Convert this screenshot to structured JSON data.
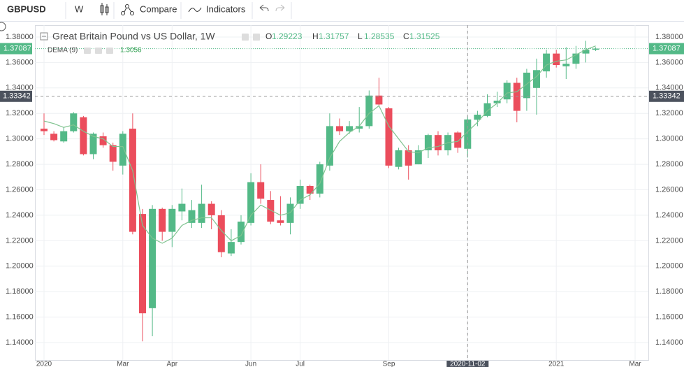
{
  "toolbar": {
    "symbol": "GBPUSD",
    "interval": "W",
    "compare": "Compare",
    "indicators": "Indicators"
  },
  "chart_data": {
    "type": "candlestick",
    "title": "Great Britain Pound vs US Dollar, 1W",
    "ohlc_labels": [
      "O",
      "H",
      "L",
      "C"
    ],
    "indicator": "DEMA (9)",
    "categories": [
      "2020",
      null,
      null,
      null,
      null,
      null,
      null,
      null,
      "Mar",
      null,
      null,
      null,
      null,
      "Apr",
      null,
      null,
      null,
      null,
      null,
      null,
      null,
      "Jun",
      null,
      null,
      null,
      null,
      "Jul",
      null,
      null,
      null,
      null,
      null,
      null,
      null,
      null,
      "Sep",
      null,
      null,
      null,
      null,
      null,
      null,
      null,
      "2020-11-02",
      null,
      null,
      null,
      null,
      null,
      null,
      null,
      null,
      "2021",
      null,
      null,
      null,
      null,
      null,
      null,
      null,
      "Mar"
    ],
    "open": [
      1.308,
      1.304,
      1.298,
      1.306,
      1.317,
      1.288,
      1.302,
      1.295,
      1.279,
      1.308,
      1.241,
      1.167,
      1.245,
      1.227,
      1.243,
      1.234,
      1.234,
      1.249,
      1.24,
      1.21,
      1.219,
      1.234,
      1.266,
      1.252,
      1.236,
      1.234,
      1.249,
      1.263,
      1.257,
      1.279,
      1.31,
      1.306,
      1.308,
      1.31,
      1.334,
      1.324,
      1.278,
      1.291,
      1.28,
      1.291,
      1.303,
      1.291,
      1.305,
      1.29223,
      1.315,
      1.318,
      1.328,
      1.331,
      1.344,
      1.332,
      1.34,
      1.353,
      1.367,
      1.357,
      1.359,
      1.367,
      1.37,
      null,
      null,
      null,
      null
    ],
    "high": [
      1.32,
      1.306,
      1.309,
      1.321,
      1.318,
      1.305,
      1.305,
      1.297,
      1.306,
      1.32,
      1.245,
      1.248,
      1.246,
      1.248,
      1.261,
      1.252,
      1.264,
      1.251,
      1.244,
      1.229,
      1.24,
      1.273,
      1.28,
      1.259,
      1.255,
      1.254,
      1.268,
      1.264,
      1.282,
      1.32,
      1.316,
      1.314,
      1.325,
      1.338,
      1.348,
      1.325,
      1.293,
      1.295,
      1.295,
      1.304,
      1.306,
      1.305,
      1.306,
      1.31757,
      1.322,
      1.335,
      1.337,
      1.346,
      1.348,
      1.355,
      1.363,
      1.37,
      1.37,
      1.372,
      1.373,
      1.377,
      1.372,
      null,
      null,
      null,
      null
    ],
    "low": [
      1.303,
      1.298,
      1.297,
      1.305,
      1.287,
      1.284,
      1.293,
      1.275,
      1.272,
      1.225,
      1.141,
      1.145,
      1.22,
      1.215,
      1.236,
      1.23,
      1.23,
      1.229,
      1.207,
      1.208,
      1.217,
      1.232,
      1.249,
      1.233,
      1.232,
      1.225,
      1.245,
      1.252,
      1.254,
      1.275,
      1.303,
      1.304,
      1.305,
      1.308,
      1.326,
      1.277,
      1.276,
      1.268,
      1.28,
      1.285,
      1.287,
      1.287,
      1.289,
      1.28535,
      1.31,
      1.317,
      1.325,
      1.328,
      1.313,
      1.322,
      1.319,
      1.348,
      1.356,
      1.347,
      1.355,
      1.36,
      1.369,
      null,
      null,
      null,
      null
    ],
    "close": [
      1.306,
      1.299,
      1.306,
      1.32,
      1.288,
      1.304,
      1.295,
      1.282,
      1.304,
      1.227,
      1.163,
      1.245,
      1.227,
      1.245,
      1.249,
      1.244,
      1.249,
      1.24,
      1.211,
      1.219,
      1.235,
      1.266,
      1.253,
      1.235,
      1.234,
      1.249,
      1.263,
      1.257,
      1.28,
      1.31,
      1.306,
      1.31,
      1.31,
      1.334,
      1.327,
      1.279,
      1.291,
      1.279,
      1.291,
      1.303,
      1.291,
      1.303,
      1.293,
      1.31525,
      1.319,
      1.328,
      1.33,
      1.344,
      1.322,
      1.352,
      1.354,
      1.367,
      1.358,
      1.359,
      1.367,
      1.37,
      1.37087,
      null,
      null,
      null,
      null
    ],
    "dema": {
      "name": "DEMA (9)",
      "color": "#7fc38f",
      "values": [
        1.314,
        1.312,
        1.309,
        1.311,
        1.306,
        1.302,
        1.3,
        1.294,
        1.294,
        1.275,
        1.232,
        1.222,
        1.218,
        1.222,
        1.232,
        1.236,
        1.238,
        1.238,
        1.228,
        1.22,
        1.224,
        1.24,
        1.248,
        1.244,
        1.24,
        1.242,
        1.252,
        1.256,
        1.265,
        1.285,
        1.298,
        1.305,
        1.31,
        1.32,
        1.326,
        1.31,
        1.3,
        1.29,
        1.289,
        1.293,
        1.294,
        1.297,
        1.298,
        1.3056,
        1.313,
        1.322,
        1.328,
        1.336,
        1.337,
        1.343,
        1.349,
        1.358,
        1.361,
        1.362,
        1.366,
        1.37,
        1.373,
        null,
        null,
        null,
        null
      ]
    },
    "up_color": "#53b987",
    "down_color": "#eb4d5c",
    "crosshair": {
      "y": 1.33342
    },
    "ylim": [
      1.1263,
      1.3893
    ],
    "yticks": [
      {
        "value": 1.14,
        "label": "1.14000"
      },
      {
        "value": 1.16,
        "label": "1.16000"
      },
      {
        "value": 1.18,
        "label": "1.18000"
      },
      {
        "value": 1.2,
        "label": "1.20000"
      },
      {
        "value": 1.22,
        "label": "1.22000"
      },
      {
        "value": 1.24,
        "label": "1.24000"
      },
      {
        "value": 1.26,
        "label": "1.26000"
      },
      {
        "value": 1.28,
        "label": "1.28000"
      },
      {
        "value": 1.3,
        "label": "1.30000"
      },
      {
        "value": 1.32,
        "label": "1.32000"
      },
      {
        "value": 1.34,
        "label": "1.34000"
      },
      {
        "value": 1.36,
        "label": "1.36000"
      },
      {
        "value": 1.38,
        "label": "1.38000"
      }
    ],
    "grid": true
  }
}
